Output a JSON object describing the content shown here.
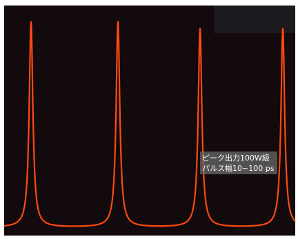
{
  "annotation": {
    "line1": "ピーク出力100W級",
    "line2": "パルス幅10~100 ps"
  }
}
